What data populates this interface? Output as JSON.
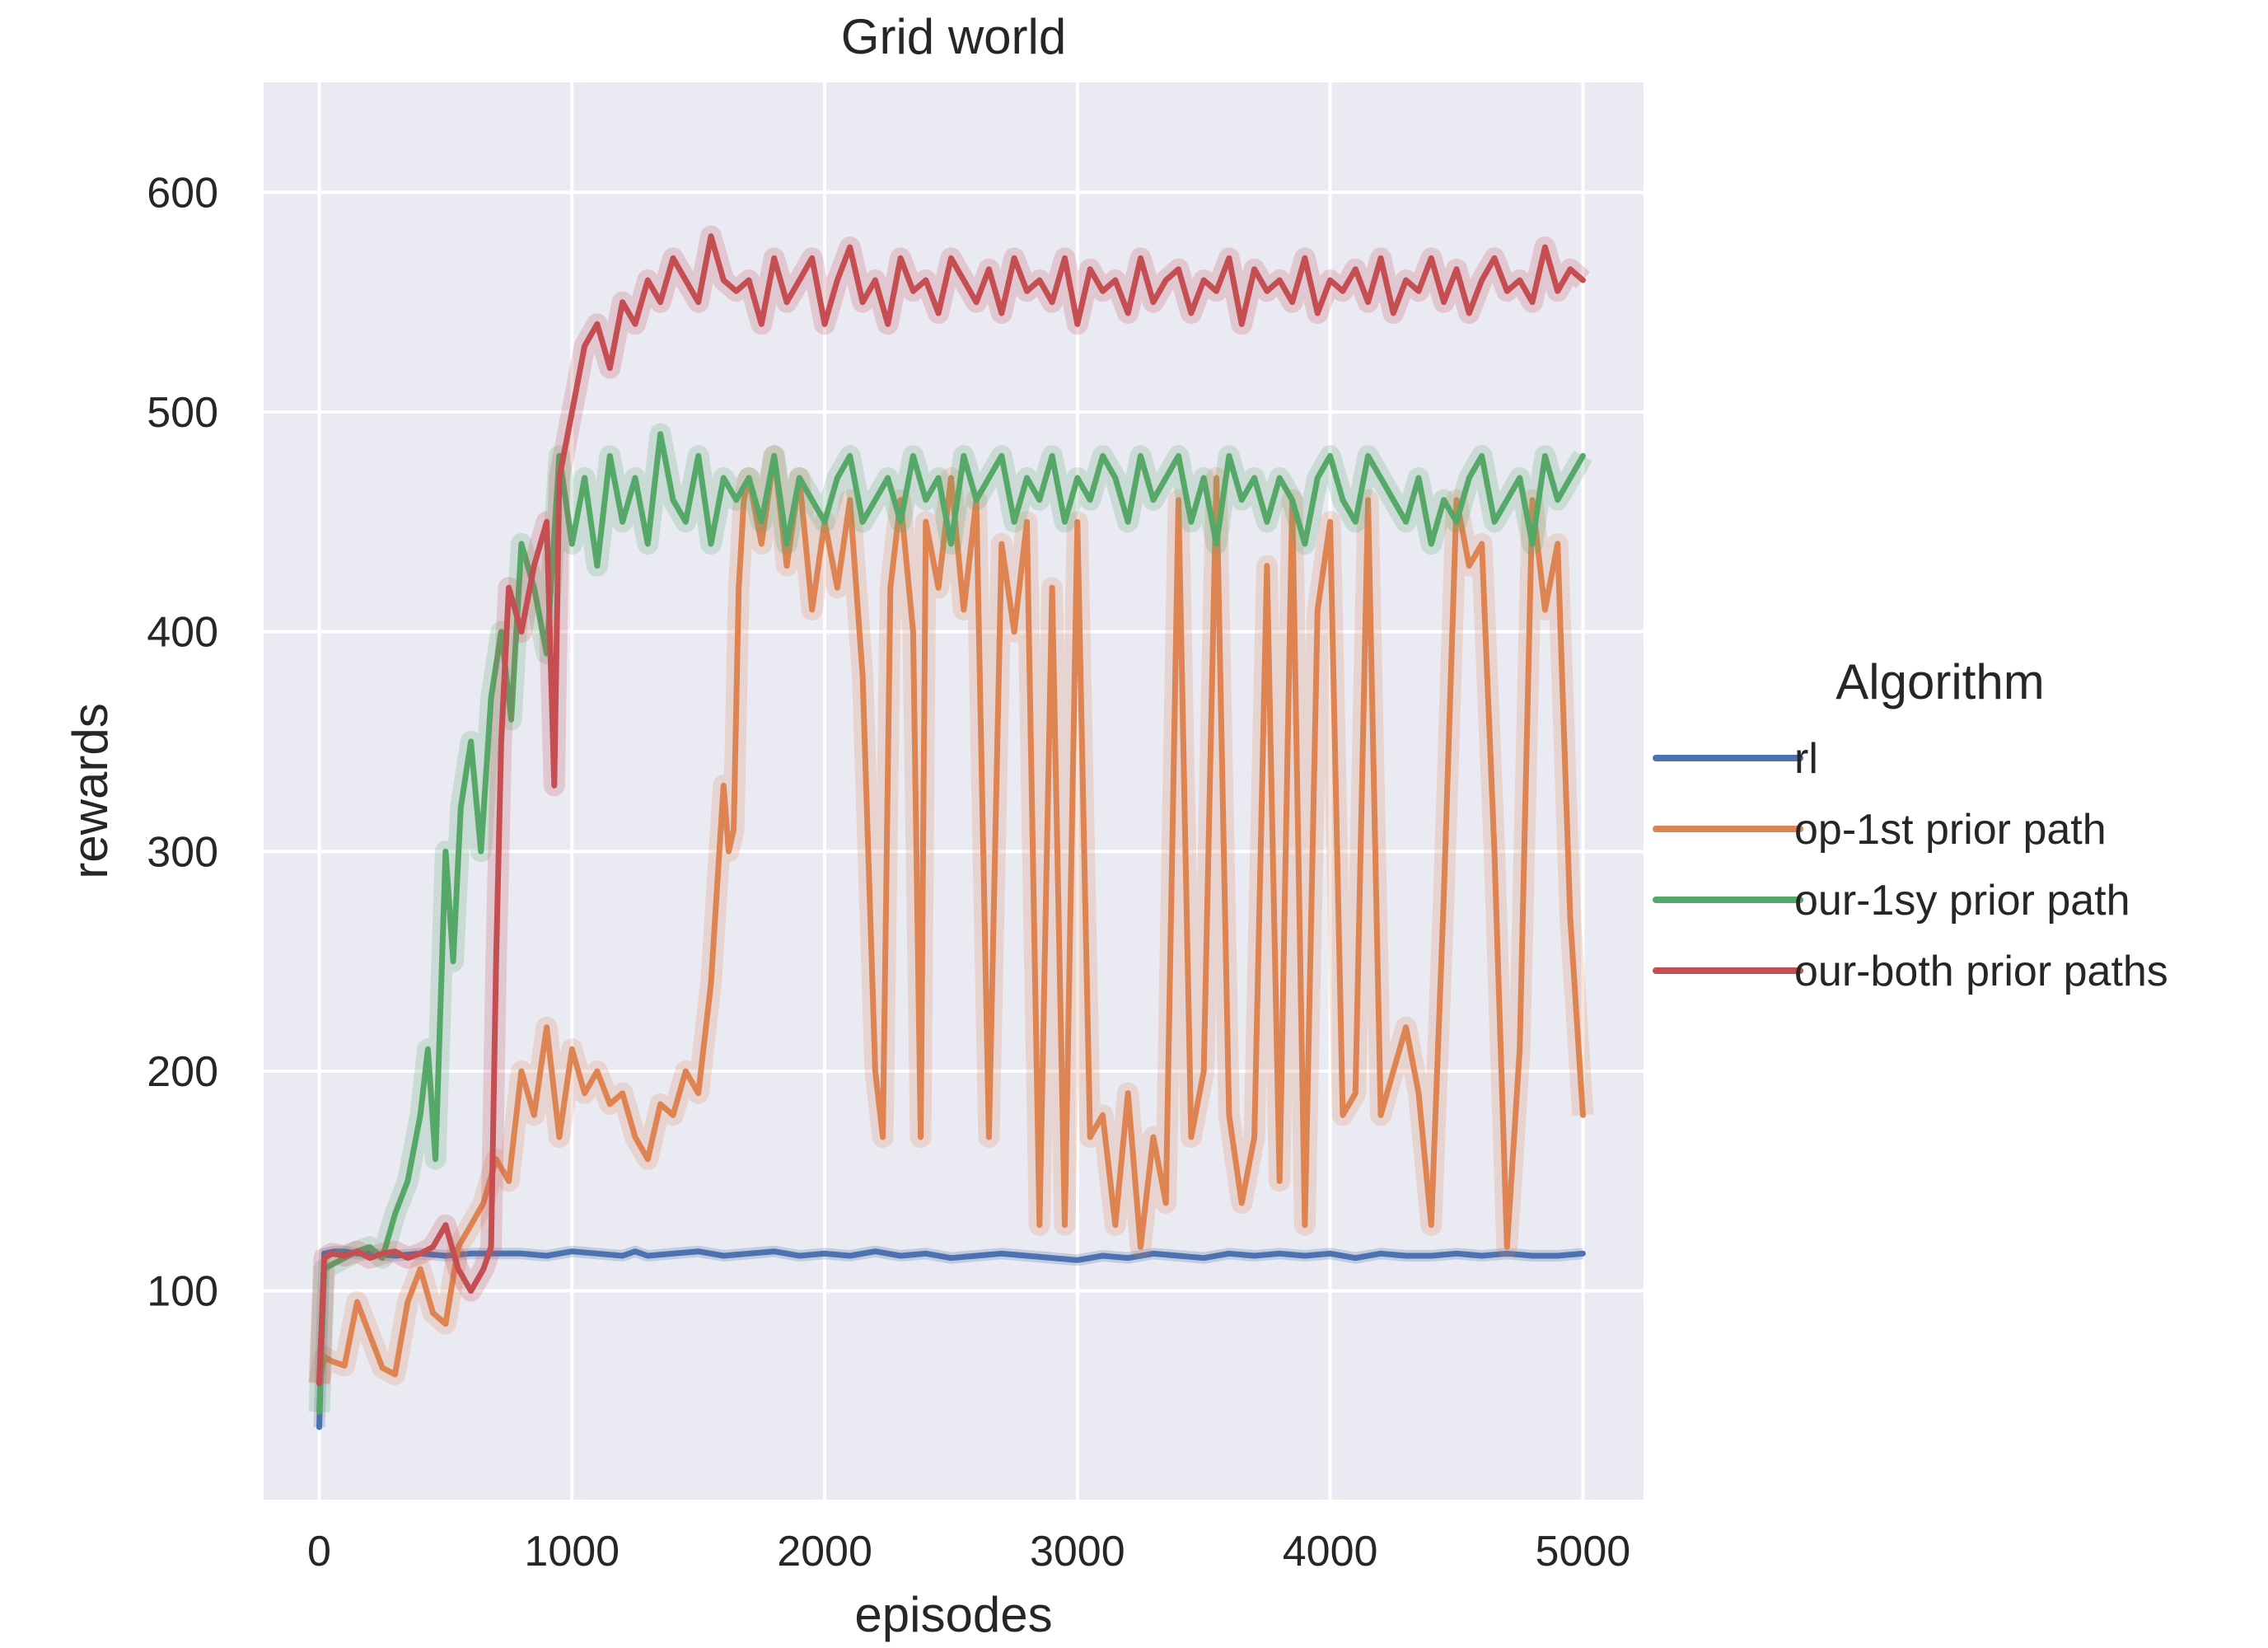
{
  "chart_data": {
    "type": "line",
    "title": "Grid world",
    "xlabel": "episodes",
    "ylabel": "rewards",
    "xlim": [
      -220,
      5240
    ],
    "ylim": [
      5,
      650
    ],
    "xticks": [
      0,
      1000,
      2000,
      3000,
      4000,
      5000
    ],
    "xtick_labels": [
      "0",
      "1000",
      "2000",
      "3000",
      "4000",
      "5000"
    ],
    "yticks": [
      100,
      200,
      300,
      400,
      500,
      600
    ],
    "ytick_labels": [
      "100",
      "200",
      "300",
      "400",
      "500",
      "600"
    ],
    "grid": true,
    "background": "#eaeaf2",
    "legend": {
      "title": "Algorithm",
      "placement": "right",
      "entries": [
        "rl",
        "op-1st prior path",
        "our-1sy prior path",
        "our-both prior paths"
      ]
    },
    "series": [
      {
        "name": "rl",
        "color": "#4c72b0",
        "x": [
          0,
          20,
          60,
          100,
          150,
          200,
          300,
          400,
          500,
          600,
          700,
          800,
          900,
          1000,
          1100,
          1200,
          1250,
          1300,
          1400,
          1500,
          1600,
          1700,
          1800,
          1900,
          2000,
          2100,
          2200,
          2300,
          2400,
          2500,
          2600,
          2700,
          2800,
          2900,
          3000,
          3100,
          3200,
          3300,
          3400,
          3500,
          3600,
          3700,
          3800,
          3900,
          4000,
          4100,
          4200,
          4300,
          4400,
          4500,
          4600,
          4700,
          4800,
          4900,
          5000
        ],
        "values": [
          38,
          117,
          118,
          118,
          117,
          117,
          116,
          117,
          116,
          117,
          117,
          117,
          116,
          118,
          117,
          116,
          118,
          116,
          117,
          118,
          116,
          117,
          118,
          116,
          117,
          116,
          118,
          116,
          117,
          115,
          116,
          117,
          116,
          115,
          114,
          116,
          115,
          117,
          116,
          115,
          117,
          116,
          117,
          116,
          117,
          115,
          117,
          116,
          116,
          117,
          116,
          117,
          116,
          116,
          117
        ]
      },
      {
        "name": "op-1st prior path",
        "color": "#dd8452",
        "x": [
          0,
          20,
          50,
          100,
          150,
          200,
          250,
          300,
          350,
          400,
          450,
          500,
          550,
          600,
          650,
          700,
          750,
          800,
          850,
          900,
          950,
          1000,
          1050,
          1100,
          1150,
          1200,
          1250,
          1300,
          1350,
          1400,
          1450,
          1500,
          1550,
          1600,
          1620,
          1640,
          1660,
          1680,
          1700,
          1750,
          1800,
          1850,
          1900,
          1950,
          2000,
          2050,
          2100,
          2150,
          2200,
          2230,
          2260,
          2300,
          2350,
          2380,
          2400,
          2450,
          2500,
          2550,
          2600,
          2650,
          2700,
          2750,
          2800,
          2850,
          2900,
          2950,
          3000,
          3050,
          3100,
          3150,
          3200,
          3250,
          3300,
          3350,
          3400,
          3450,
          3500,
          3550,
          3600,
          3650,
          3700,
          3750,
          3800,
          3850,
          3900,
          3950,
          4000,
          4050,
          4100,
          4150,
          4200,
          4250,
          4300,
          4350,
          4400,
          4450,
          4500,
          4550,
          4600,
          4650,
          4700,
          4750,
          4800,
          4850,
          4900,
          4950,
          5000
        ],
        "values": [
          58,
          70,
          68,
          66,
          95,
          80,
          65,
          62,
          95,
          110,
          90,
          85,
          120,
          130,
          140,
          160,
          150,
          200,
          180,
          220,
          170,
          210,
          190,
          200,
          185,
          190,
          170,
          160,
          185,
          180,
          200,
          190,
          240,
          330,
          300,
          310,
          420,
          460,
          470,
          440,
          480,
          430,
          470,
          410,
          450,
          420,
          460,
          380,
          200,
          170,
          420,
          460,
          400,
          170,
          450,
          420,
          470,
          410,
          460,
          170,
          440,
          400,
          450,
          130,
          420,
          130,
          450,
          170,
          180,
          130,
          190,
          120,
          170,
          140,
          460,
          170,
          200,
          470,
          180,
          140,
          170,
          430,
          150,
          460,
          130,
          410,
          450,
          180,
          190,
          460,
          180,
          200,
          220,
          190,
          130,
          280,
          460,
          430,
          440,
          300,
          120,
          210,
          460,
          410,
          440,
          270,
          180
        ]
      },
      {
        "name": "our-1sy prior path",
        "color": "#55a868",
        "x": [
          0,
          20,
          50,
          100,
          150,
          200,
          250,
          300,
          350,
          400,
          430,
          460,
          500,
          530,
          560,
          600,
          640,
          680,
          720,
          760,
          800,
          850,
          900,
          950,
          1000,
          1050,
          1100,
          1150,
          1200,
          1250,
          1300,
          1350,
          1400,
          1450,
          1500,
          1550,
          1600,
          1650,
          1700,
          1750,
          1800,
          1850,
          1900,
          1950,
          2000,
          2050,
          2100,
          2150,
          2200,
          2250,
          2300,
          2350,
          2400,
          2450,
          2500,
          2550,
          2600,
          2650,
          2700,
          2750,
          2800,
          2850,
          2900,
          2950,
          3000,
          3050,
          3100,
          3150,
          3200,
          3250,
          3300,
          3350,
          3400,
          3450,
          3500,
          3550,
          3600,
          3650,
          3700,
          3750,
          3800,
          3850,
          3900,
          3950,
          4000,
          4050,
          4100,
          4150,
          4200,
          4250,
          4300,
          4350,
          4400,
          4450,
          4500,
          4550,
          4600,
          4650,
          4700,
          4750,
          4800,
          4850,
          4900,
          4950,
          5000
        ],
        "values": [
          45,
          110,
          112,
          115,
          118,
          120,
          115,
          135,
          150,
          180,
          210,
          160,
          300,
          250,
          320,
          350,
          300,
          370,
          400,
          360,
          440,
          420,
          390,
          480,
          440,
          470,
          430,
          480,
          450,
          470,
          440,
          490,
          460,
          450,
          480,
          440,
          470,
          460,
          470,
          450,
          480,
          440,
          470,
          460,
          450,
          470,
          480,
          450,
          460,
          470,
          450,
          480,
          460,
          470,
          440,
          480,
          460,
          470,
          480,
          450,
          470,
          460,
          480,
          450,
          470,
          460,
          480,
          470,
          450,
          480,
          460,
          470,
          480,
          450,
          470,
          440,
          480,
          460,
          470,
          450,
          470,
          460,
          440,
          470,
          480,
          460,
          450,
          480,
          470,
          460,
          450,
          470,
          440,
          460,
          450,
          470,
          480,
          450,
          460,
          470,
          440,
          480,
          460,
          470,
          480
        ]
      },
      {
        "name": "our-both prior paths",
        "color": "#c44e52",
        "x": [
          0,
          20,
          50,
          100,
          150,
          200,
          250,
          300,
          350,
          400,
          450,
          500,
          550,
          600,
          650,
          680,
          700,
          720,
          750,
          800,
          850,
          900,
          930,
          950,
          1000,
          1050,
          1100,
          1150,
          1200,
          1250,
          1300,
          1350,
          1400,
          1450,
          1500,
          1550,
          1600,
          1650,
          1700,
          1750,
          1800,
          1850,
          1900,
          1950,
          2000,
          2050,
          2100,
          2150,
          2200,
          2250,
          2300,
          2350,
          2400,
          2450,
          2500,
          2550,
          2600,
          2650,
          2700,
          2750,
          2800,
          2850,
          2900,
          2950,
          3000,
          3050,
          3100,
          3150,
          3200,
          3250,
          3300,
          3350,
          3400,
          3450,
          3500,
          3550,
          3600,
          3650,
          3700,
          3750,
          3800,
          3850,
          3900,
          3950,
          4000,
          4050,
          4100,
          4150,
          4200,
          4250,
          4300,
          4350,
          4400,
          4450,
          4500,
          4550,
          4600,
          4650,
          4700,
          4750,
          4800,
          4850,
          4900,
          4950,
          5000
        ],
        "values": [
          58,
          115,
          117,
          116,
          118,
          115,
          117,
          118,
          115,
          117,
          120,
          130,
          110,
          100,
          110,
          120,
          250,
          350,
          420,
          400,
          430,
          450,
          330,
          470,
          500,
          530,
          540,
          520,
          550,
          540,
          560,
          550,
          570,
          560,
          550,
          580,
          560,
          555,
          560,
          540,
          570,
          550,
          560,
          570,
          540,
          560,
          575,
          550,
          560,
          540,
          570,
          555,
          560,
          545,
          570,
          560,
          550,
          565,
          545,
          570,
          555,
          560,
          550,
          570,
          540,
          565,
          555,
          560,
          545,
          570,
          550,
          560,
          565,
          545,
          560,
          555,
          570,
          540,
          565,
          555,
          560,
          550,
          570,
          545,
          560,
          555,
          565,
          550,
          570,
          545,
          560,
          555,
          570,
          550,
          565,
          545,
          560,
          570,
          555,
          560,
          550,
          575,
          555,
          565,
          560
        ]
      }
    ]
  }
}
